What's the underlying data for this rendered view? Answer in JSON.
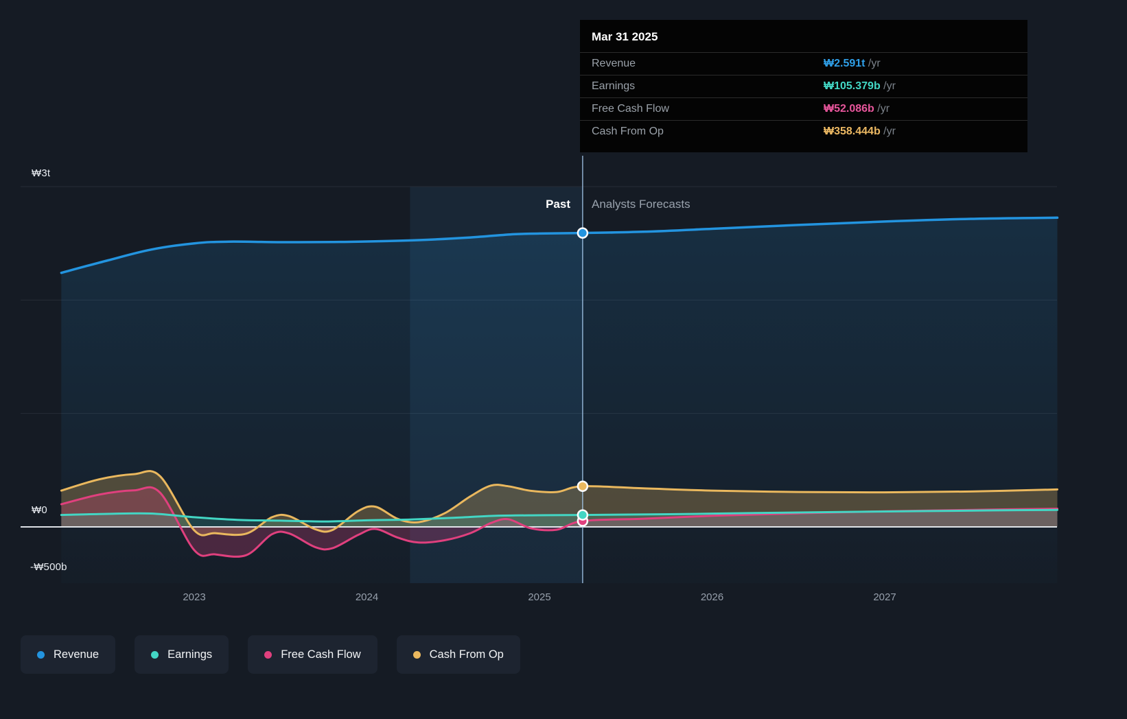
{
  "tooltip": {
    "date": "Mar 31 2025",
    "rows": [
      {
        "label": "Revenue",
        "value": "₩2.591t",
        "suffix": " /yr",
        "color": "#2f9fe8"
      },
      {
        "label": "Earnings",
        "value": "₩105.379b",
        "suffix": " /yr",
        "color": "#43d8c6"
      },
      {
        "label": "Free Cash Flow",
        "value": "₩52.086b",
        "suffix": " /yr",
        "color": "#e8569c"
      },
      {
        "label": "Cash From Op",
        "value": "₩358.444b",
        "suffix": " /yr",
        "color": "#edb963"
      }
    ]
  },
  "annotations": {
    "past": "Past",
    "forecast": "Analysts Forecasts"
  },
  "legend": [
    {
      "label": "Revenue",
      "color": "#2394df"
    },
    {
      "label": "Earnings",
      "color": "#43d6c4"
    },
    {
      "label": "Free Cash Flow",
      "color": "#e0407e"
    },
    {
      "label": "Cash From Op",
      "color": "#eab85e"
    }
  ],
  "chart_data": {
    "type": "line",
    "unit": "₩ billions",
    "x_domain": [
      2022.23,
      2028.0
    ],
    "divider_x": 2025.25,
    "divider_date": "Mar 31 2025",
    "highlight_band": [
      2024.25,
      2025.25
    ],
    "x_ticks": [
      2023,
      2024,
      2025,
      2026,
      2027
    ],
    "y_axis": {
      "labels": [
        {
          "text": "₩3t",
          "value": 3000
        },
        {
          "text": "₩0",
          "value": 0
        },
        {
          "text": "-₩500b",
          "value": -500
        }
      ],
      "gridlines": [
        3000,
        2000,
        1000
      ],
      "ylim": [
        -500,
        3300
      ],
      "grid": true
    },
    "legend_position": "bottom-left",
    "series": [
      {
        "name": "Revenue",
        "color": "#2394df",
        "marker_value": 2591,
        "fill": "gradient",
        "points": [
          [
            2022.23,
            2240
          ],
          [
            2022.5,
            2350
          ],
          [
            2022.75,
            2445
          ],
          [
            2023.0,
            2500
          ],
          [
            2023.2,
            2515
          ],
          [
            2023.5,
            2510
          ],
          [
            2023.8,
            2512
          ],
          [
            2024.0,
            2516
          ],
          [
            2024.3,
            2528
          ],
          [
            2024.6,
            2552
          ],
          [
            2024.85,
            2580
          ],
          [
            2025.0,
            2586
          ],
          [
            2025.25,
            2591
          ],
          [
            2025.6,
            2602
          ],
          [
            2026.0,
            2628
          ],
          [
            2026.5,
            2662
          ],
          [
            2027.0,
            2692
          ],
          [
            2027.5,
            2716
          ],
          [
            2028.0,
            2726
          ]
        ]
      },
      {
        "name": "Cash From Op",
        "color": "#eab85e",
        "marker_value": 358.444,
        "fill_opacity": 0.28,
        "points": [
          [
            2022.23,
            320
          ],
          [
            2022.45,
            420
          ],
          [
            2022.65,
            465
          ],
          [
            2022.8,
            450
          ],
          [
            2023.0,
            -30
          ],
          [
            2023.12,
            -55
          ],
          [
            2023.3,
            -60
          ],
          [
            2023.45,
            85
          ],
          [
            2023.55,
            95
          ],
          [
            2023.7,
            -20
          ],
          [
            2023.8,
            -28
          ],
          [
            2023.95,
            140
          ],
          [
            2024.05,
            178
          ],
          [
            2024.18,
            70
          ],
          [
            2024.3,
            42
          ],
          [
            2024.45,
            120
          ],
          [
            2024.6,
            270
          ],
          [
            2024.72,
            365
          ],
          [
            2024.82,
            358
          ],
          [
            2024.95,
            318
          ],
          [
            2025.1,
            308
          ],
          [
            2025.25,
            358.444
          ],
          [
            2025.6,
            340
          ],
          [
            2026.0,
            320
          ],
          [
            2026.5,
            308
          ],
          [
            2027.0,
            305
          ],
          [
            2027.5,
            312
          ],
          [
            2028.0,
            330
          ]
        ]
      },
      {
        "name": "Free Cash Flow",
        "color": "#e0407e",
        "marker_value": 52.086,
        "fill_opacity": 0.26,
        "points": [
          [
            2022.23,
            200
          ],
          [
            2022.45,
            285
          ],
          [
            2022.65,
            322
          ],
          [
            2022.8,
            305
          ],
          [
            2023.0,
            -205
          ],
          [
            2023.12,
            -242
          ],
          [
            2023.3,
            -250
          ],
          [
            2023.45,
            -65
          ],
          [
            2023.55,
            -58
          ],
          [
            2023.7,
            -178
          ],
          [
            2023.8,
            -188
          ],
          [
            2023.95,
            -70
          ],
          [
            2024.05,
            -18
          ],
          [
            2024.18,
            -95
          ],
          [
            2024.3,
            -138
          ],
          [
            2024.45,
            -118
          ],
          [
            2024.6,
            -55
          ],
          [
            2024.72,
            35
          ],
          [
            2024.82,
            68
          ],
          [
            2024.95,
            -12
          ],
          [
            2025.1,
            -25
          ],
          [
            2025.25,
            52.086
          ],
          [
            2025.6,
            72
          ],
          [
            2026.0,
            98
          ],
          [
            2026.5,
            120
          ],
          [
            2027.0,
            138
          ],
          [
            2027.5,
            150
          ],
          [
            2028.0,
            160
          ]
        ]
      },
      {
        "name": "Earnings",
        "color": "#43d6c4",
        "marker_value": 105.379,
        "fill_opacity": 0.18,
        "points": [
          [
            2022.23,
            105
          ],
          [
            2022.5,
            115
          ],
          [
            2022.75,
            118
          ],
          [
            2023.0,
            85
          ],
          [
            2023.25,
            62
          ],
          [
            2023.5,
            55
          ],
          [
            2023.75,
            48
          ],
          [
            2024.0,
            58
          ],
          [
            2024.25,
            65
          ],
          [
            2024.5,
            80
          ],
          [
            2024.75,
            98
          ],
          [
            2025.0,
            103
          ],
          [
            2025.25,
            105.379
          ],
          [
            2025.75,
            112
          ],
          [
            2026.25,
            122
          ],
          [
            2026.75,
            132
          ],
          [
            2027.25,
            140
          ],
          [
            2027.65,
            146
          ],
          [
            2028.0,
            150
          ]
        ]
      }
    ]
  }
}
